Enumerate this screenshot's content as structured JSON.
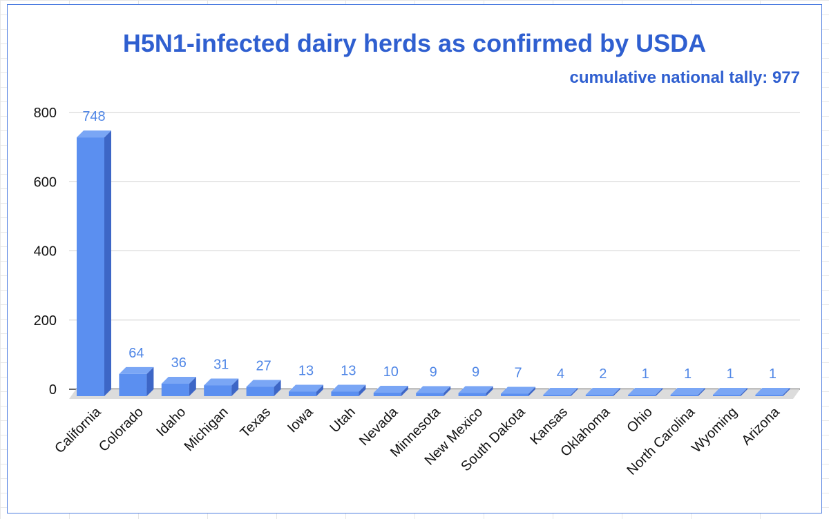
{
  "chart_data": {
    "type": "bar",
    "title": "H5N1-infected dairy herds as confirmed by USDA",
    "subtitle": "cumulative national tally: 977",
    "categories": [
      "California",
      "Colorado",
      "Idaho",
      "Michigan",
      "Texas",
      "Iowa",
      "Utah",
      "Nevada",
      "Minnesota",
      "New Mexico",
      "South Dakota",
      "Kansas",
      "Oklahoma",
      "Ohio",
      "North Carolina",
      "Wyoming",
      "Arizona"
    ],
    "values": [
      748,
      64,
      36,
      31,
      27,
      13,
      13,
      10,
      9,
      9,
      7,
      4,
      2,
      1,
      1,
      1,
      1
    ],
    "data_labels": [
      "748",
      "64",
      "36",
      "31",
      "27",
      "13",
      "13",
      "10",
      "9",
      "9",
      "7",
      "4",
      "2",
      "1",
      "1",
      "1",
      "1"
    ],
    "yticks": [
      0,
      200,
      400,
      600,
      800
    ],
    "ylim": [
      0,
      800
    ],
    "grid": true,
    "style": "3d-bars",
    "colors": {
      "bar_front": "#5b8ff0",
      "bar_top": "#7aa6f5",
      "bar_side": "#3d66c6",
      "floor": "#dcdcdc",
      "title": "#2f5fd0",
      "data_label": "#4f86e6"
    }
  }
}
